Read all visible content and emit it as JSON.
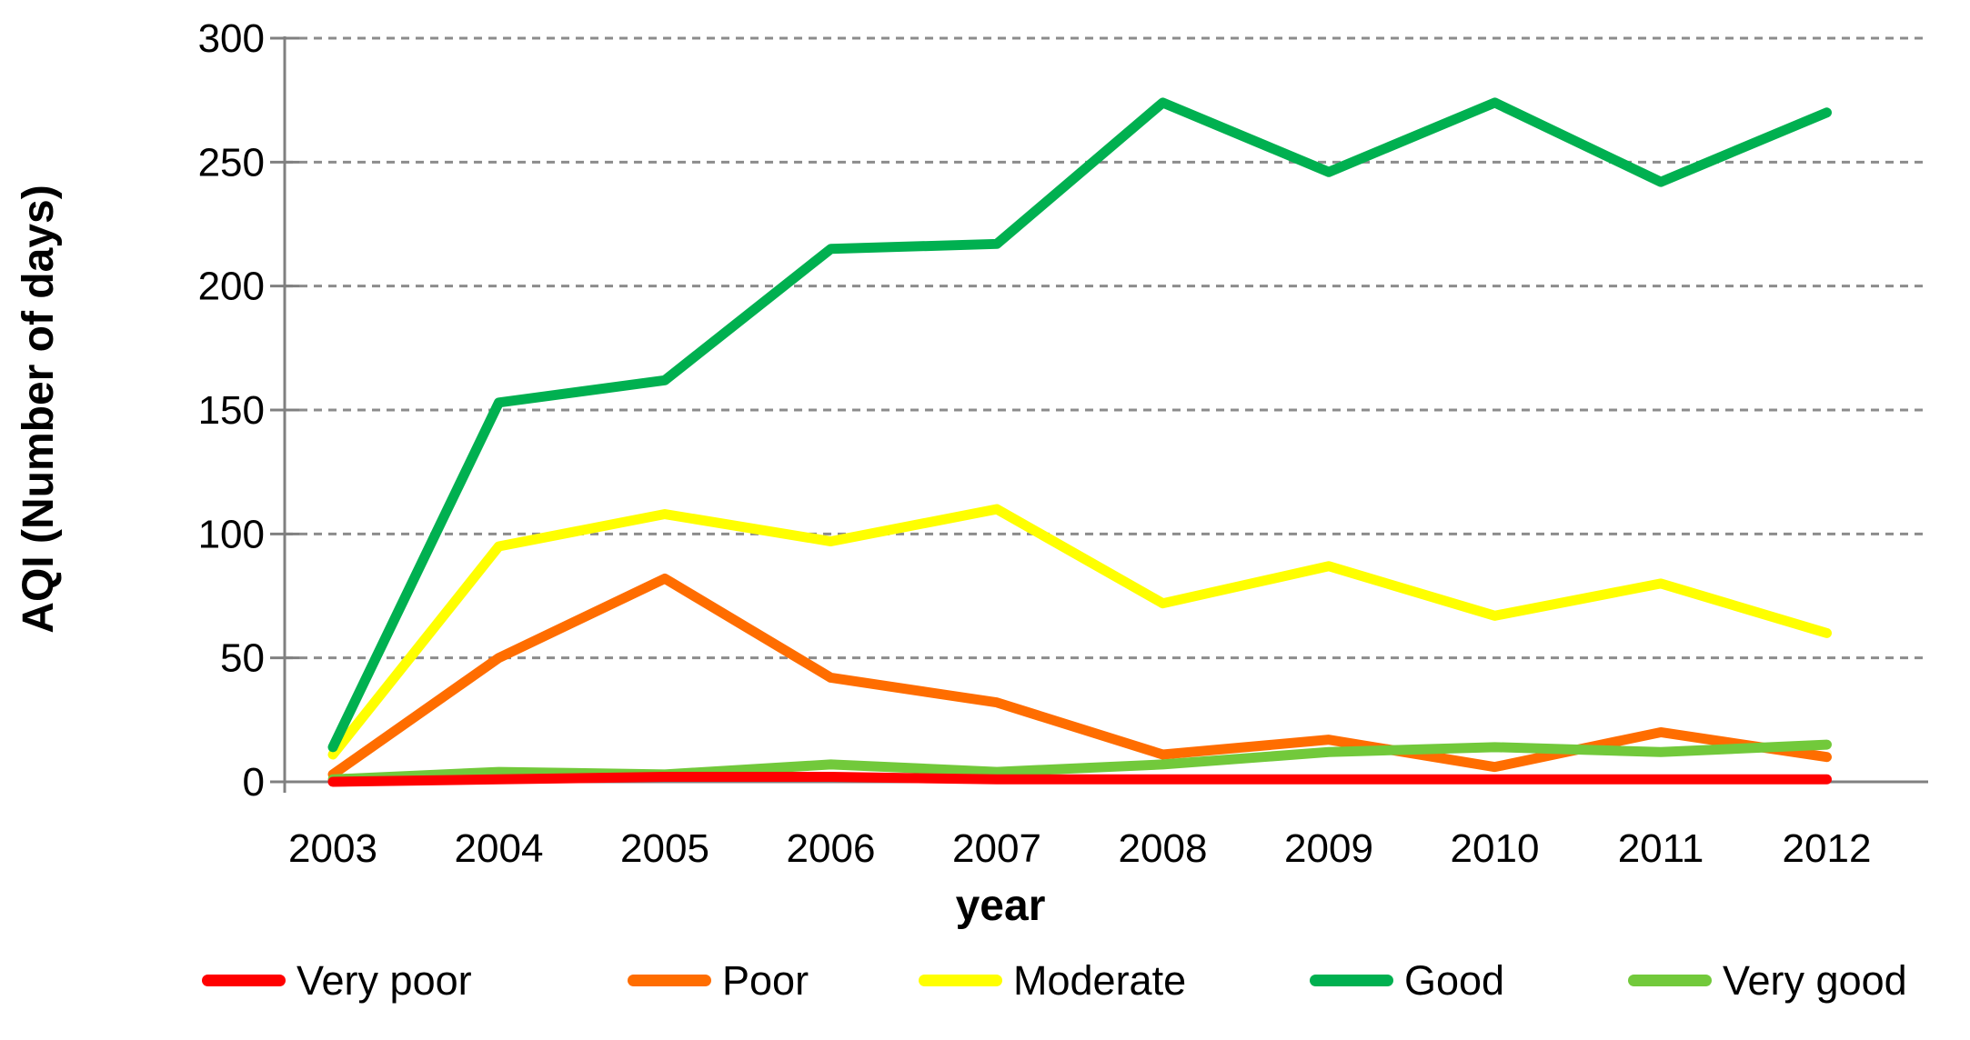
{
  "chart_data": {
    "type": "line",
    "title": "",
    "xlabel": "year",
    "ylabel": "AQI (Number of days)",
    "x": [
      2003,
      2004,
      2005,
      2006,
      2007,
      2008,
      2009,
      2010,
      2011,
      2012
    ],
    "ylim": [
      0,
      300
    ],
    "yticks": [
      0,
      50,
      100,
      150,
      200,
      250,
      300
    ],
    "grid": "horizontal-dashed",
    "grid_color": "#8c8c8c",
    "axis_color": "#808080",
    "legend_position": "bottom",
    "series": [
      {
        "name": "Very poor",
        "color": "#ff0000",
        "values": [
          0,
          1,
          2,
          2,
          1,
          1,
          1,
          1,
          1,
          1
        ]
      },
      {
        "name": "Poor",
        "color": "#ff6d00",
        "values": [
          3,
          50,
          82,
          42,
          32,
          11,
          17,
          6,
          20,
          10
        ]
      },
      {
        "name": "Moderate",
        "color": "#ffff00",
        "values": [
          11,
          95,
          108,
          97,
          110,
          72,
          87,
          67,
          80,
          60
        ]
      },
      {
        "name": "Good",
        "color": "#00b050",
        "values": [
          14,
          153,
          162,
          215,
          217,
          274,
          246,
          274,
          242,
          270
        ]
      },
      {
        "name": "Very good",
        "color": "#72c93b",
        "values": [
          1,
          4,
          3,
          7,
          4,
          7,
          12,
          14,
          12,
          15
        ]
      }
    ]
  }
}
